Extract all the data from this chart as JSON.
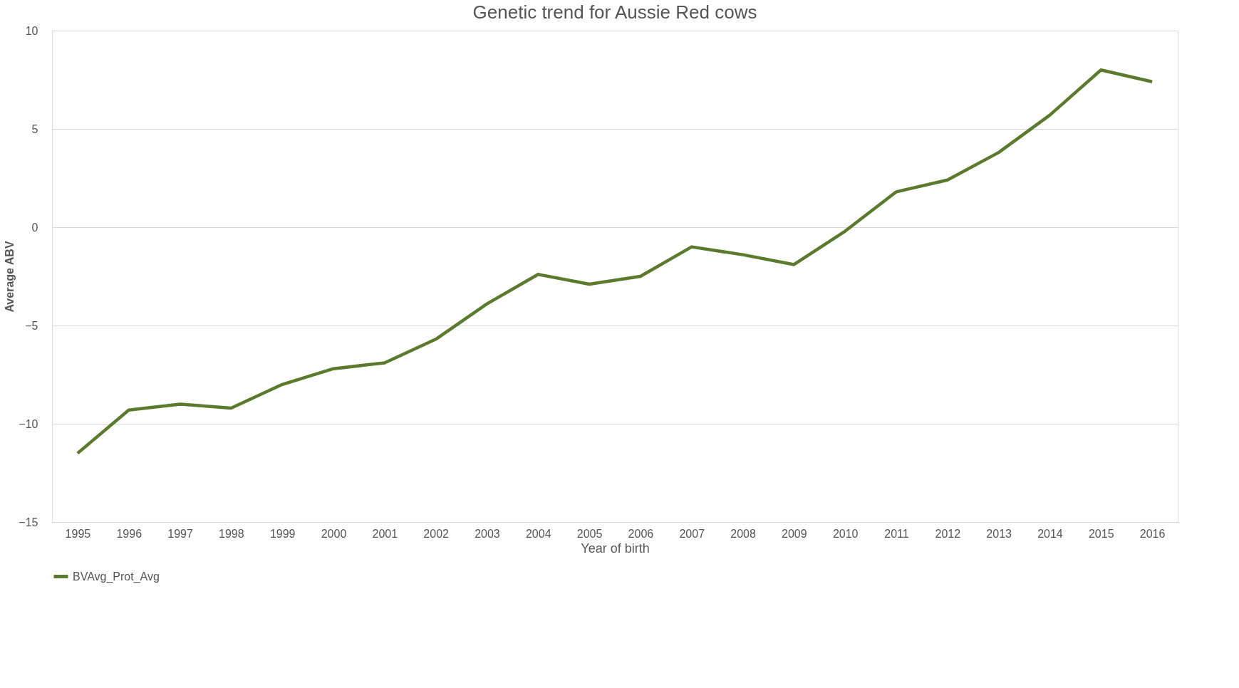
{
  "chart_data": {
    "type": "line",
    "title": "Genetic trend for Aussie Red cows",
    "xlabel": "Year of birth",
    "ylabel": "Average ABV",
    "categories": [
      "1995",
      "1996",
      "1997",
      "1998",
      "1999",
      "2000",
      "2001",
      "2002",
      "2003",
      "2004",
      "2005",
      "2006",
      "2007",
      "2008",
      "2009",
      "2010",
      "2011",
      "2012",
      "2013",
      "2014",
      "2015",
      "2016"
    ],
    "series": [
      {
        "name": "BVAvg_Prot_Avg",
        "color": "#5b7a2e",
        "values": [
          -11.5,
          -9.3,
          -9.0,
          -9.2,
          -8.0,
          -7.2,
          -6.9,
          -5.7,
          -3.9,
          -2.4,
          -2.9,
          -2.5,
          -1.0,
          -1.4,
          -1.9,
          -0.2,
          1.8,
          2.4,
          3.8,
          5.7,
          8.0,
          7.4
        ]
      }
    ],
    "ylim": [
      -15,
      10
    ],
    "yticks": [
      -15,
      -10,
      -5,
      0,
      5,
      10
    ],
    "grid": "y",
    "legend": "bottom",
    "marker": "none",
    "line_style": "solid"
  }
}
